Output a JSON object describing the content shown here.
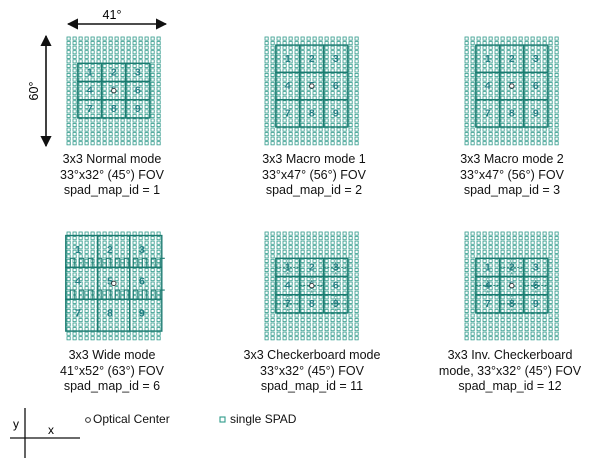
{
  "colors": {
    "spad": "#2f9a8a",
    "zone_line": "#1b7a70",
    "zone_number": "#237e83",
    "text": "#111111"
  },
  "dimensions": {
    "width_label": "41°",
    "height_label": "60°"
  },
  "panels": [
    {
      "caption": [
        "3x3 Normal mode",
        "33°x32° (45°) FOV",
        "spad_map_id = 1"
      ],
      "zones": [
        "1",
        "2",
        "3",
        "4",
        "5",
        "6",
        "7",
        "8",
        "9"
      ]
    },
    {
      "caption": [
        "3x3 Macro mode 1",
        "33°x47° (56°) FOV",
        "spad_map_id = 2"
      ],
      "zones": [
        "1",
        "2",
        "3",
        "4",
        "5",
        "6",
        "7",
        "8",
        "9"
      ]
    },
    {
      "caption": [
        "3x3 Macro mode 2",
        "33°x47° (56°) FOV",
        "spad_map_id = 3"
      ],
      "zones": [
        "1",
        "2",
        "3",
        "4",
        "5",
        "6",
        "7",
        "8",
        "9"
      ]
    },
    {
      "caption": [
        "3x3 Wide mode",
        "41°x52° (63°) FOV",
        "spad_map_id = 6"
      ],
      "zones": [
        "1",
        "2",
        "3",
        "4",
        "5",
        "6",
        "7",
        "8",
        "9"
      ]
    },
    {
      "caption": [
        "3x3 Checkerboard mode",
        "33°x32° (45°) FOV",
        "spad_map_id = 11"
      ],
      "zones": [
        "1",
        "2",
        "3",
        "4",
        "5",
        "6",
        "7",
        "8",
        "9"
      ]
    },
    {
      "caption": [
        "3x3 Inv. Checkerboard",
        "mode, 33°x32° (45°) FOV",
        "spad_map_id = 12"
      ],
      "zones": [
        "1",
        "2",
        "3",
        "4",
        "5",
        "6",
        "7",
        "8",
        "9"
      ]
    }
  ],
  "legend": {
    "axis_x": "x",
    "axis_y": "y",
    "optical_center": "Optical Center",
    "single_spad": "single SPAD"
  }
}
